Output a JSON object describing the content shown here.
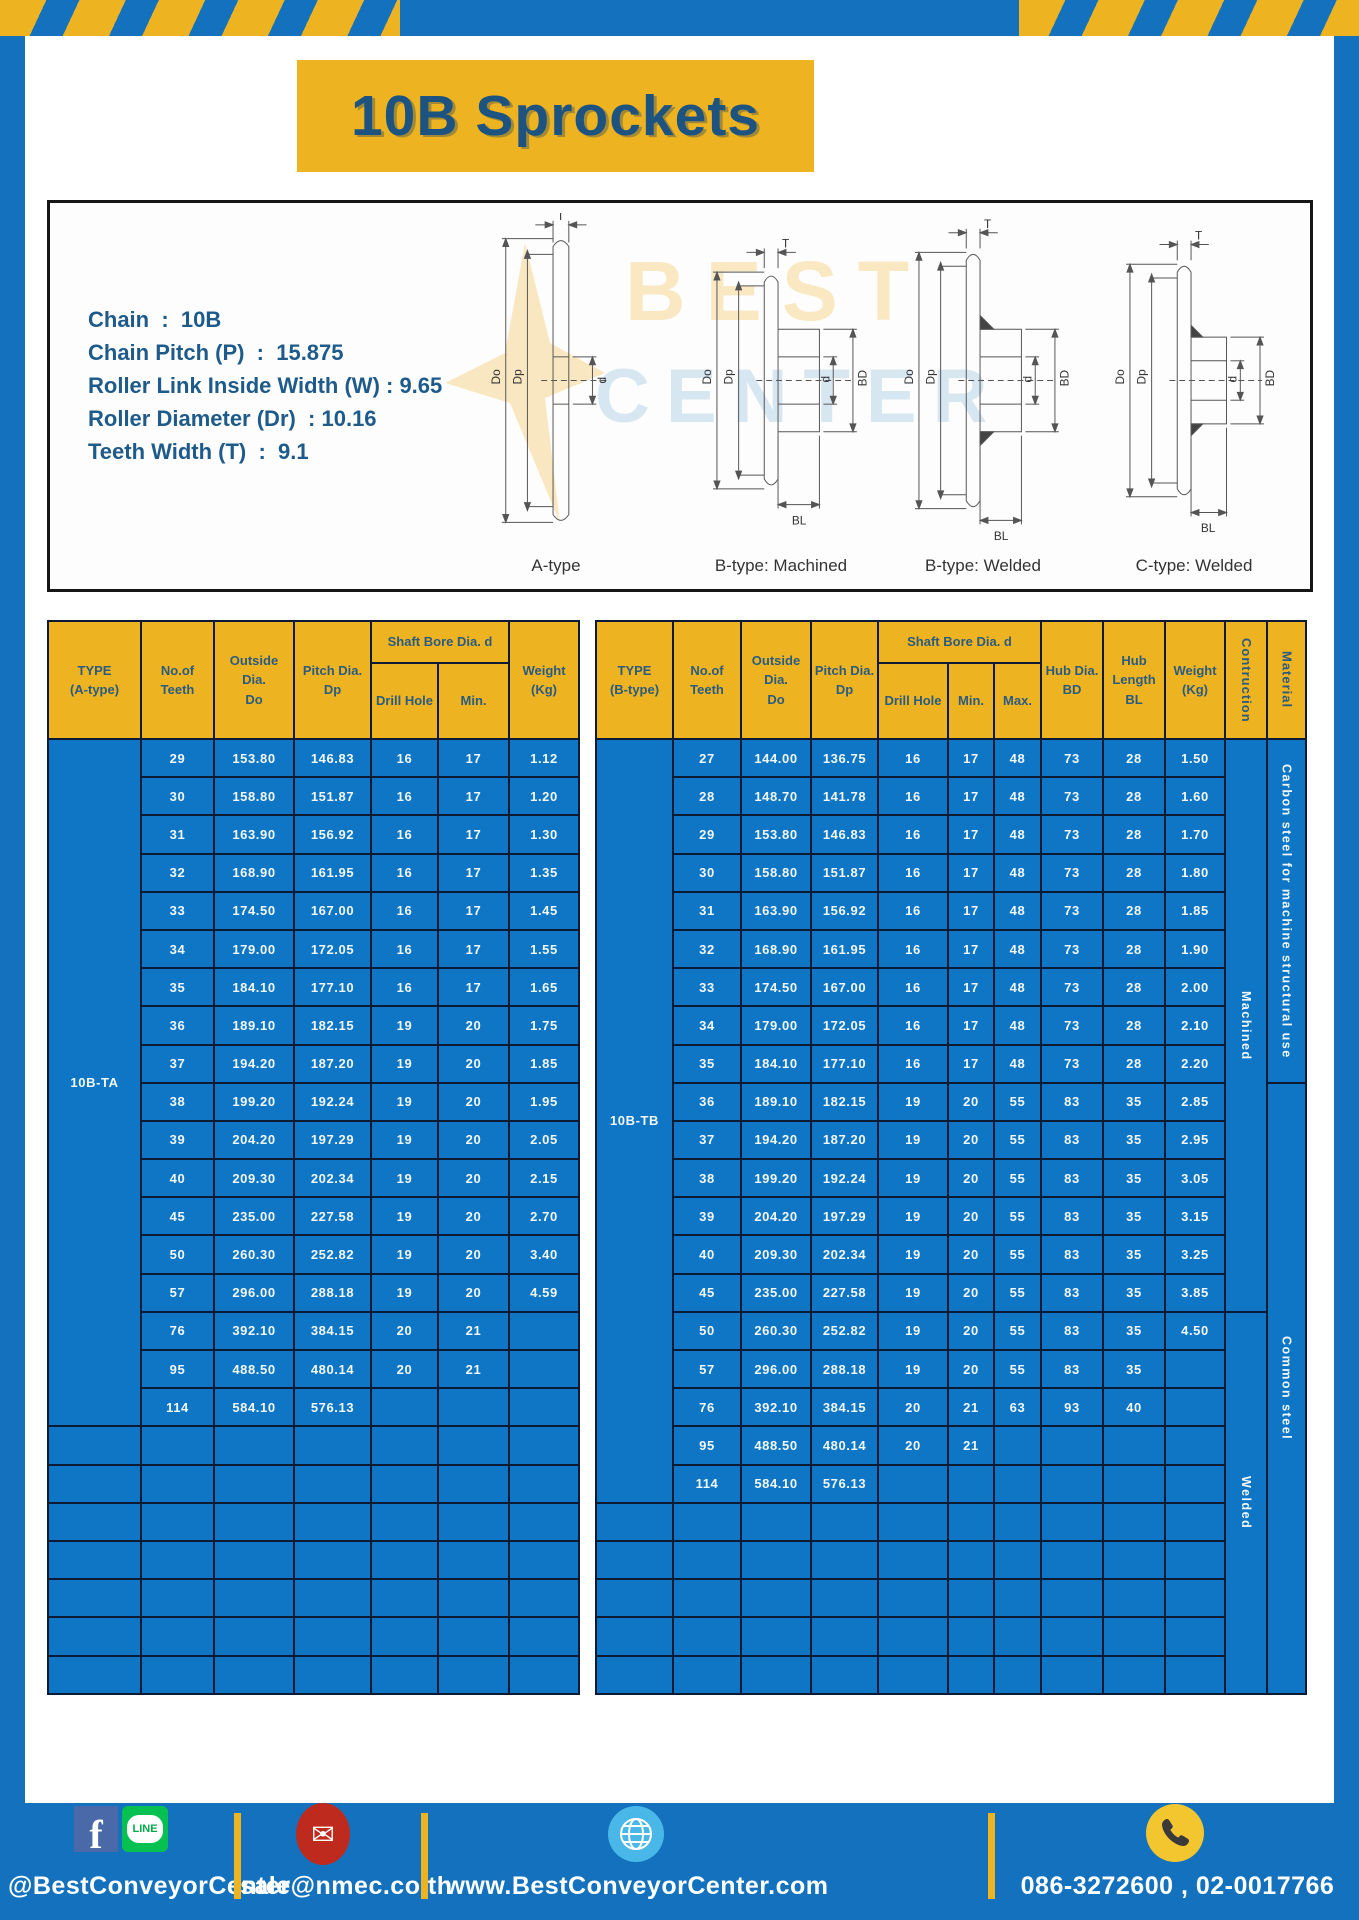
{
  "page": {
    "title": "10B Sprockets"
  },
  "colors": {
    "frame_blue": "#1371BE",
    "cell_blue": "#0E76C4",
    "accent_yellow": "#EEB321",
    "dark_blue_text": "#1C5380",
    "table_border": "#0C1B33",
    "mail_red": "#BF2A1F",
    "line_green": "#06C152",
    "facebook_blue": "#4A69A8",
    "globe_blue": "#49B7E8"
  },
  "specs": {
    "lines": [
      "Chain  :  10B",
      "Chain Pitch (P)  :  15.875",
      "Roller Link Inside Width (W) : 9.65",
      "Roller Diameter (Dr)  : 10.16",
      "Teeth Width (T)  :  9.1"
    ]
  },
  "drawings": {
    "captions": [
      "A-type",
      "B-type: Machined",
      "B-type: Welded",
      "C-type: Welded"
    ],
    "dims": {
      "t": "T",
      "do": "Do",
      "dp": "Dp",
      "d": "d",
      "bd": "BD",
      "bl": "BL"
    }
  },
  "left_table": {
    "type_label": "10B-TA",
    "h": {
      "type": "TYPE\n(A-type)",
      "teeth": "No.of\nTeeth",
      "outside": "Outside\nDia.\nDo",
      "pitch": "Pitch Dia.\nDp",
      "shaft_bore": "Shaft Bore Dia. d",
      "drill": "Drill Hole",
      "min": "Min.",
      "weight": "Weight\n(Kg)"
    },
    "rows": [
      [
        "29",
        "153.80",
        "146.83",
        "16",
        "17",
        "1.12"
      ],
      [
        "30",
        "158.80",
        "151.87",
        "16",
        "17",
        "1.20"
      ],
      [
        "31",
        "163.90",
        "156.92",
        "16",
        "17",
        "1.30"
      ],
      [
        "32",
        "168.90",
        "161.95",
        "16",
        "17",
        "1.35"
      ],
      [
        "33",
        "174.50",
        "167.00",
        "16",
        "17",
        "1.45"
      ],
      [
        "34",
        "179.00",
        "172.05",
        "16",
        "17",
        "1.55"
      ],
      [
        "35",
        "184.10",
        "177.10",
        "16",
        "17",
        "1.65"
      ],
      [
        "36",
        "189.10",
        "182.15",
        "19",
        "20",
        "1.75"
      ],
      [
        "37",
        "194.20",
        "187.20",
        "19",
        "20",
        "1.85"
      ],
      [
        "38",
        "199.20",
        "192.24",
        "19",
        "20",
        "1.95"
      ],
      [
        "39",
        "204.20",
        "197.29",
        "19",
        "20",
        "2.05"
      ],
      [
        "40",
        "209.30",
        "202.34",
        "19",
        "20",
        "2.15"
      ],
      [
        "45",
        "235.00",
        "227.58",
        "19",
        "20",
        "2.70"
      ],
      [
        "50",
        "260.30",
        "252.82",
        "19",
        "20",
        "3.40"
      ],
      [
        "57",
        "296.00",
        "288.18",
        "19",
        "20",
        "4.59"
      ],
      [
        "76",
        "392.10",
        "384.15",
        "20",
        "21",
        ""
      ],
      [
        "95",
        "488.50",
        "480.14",
        "20",
        "21",
        ""
      ],
      [
        "114",
        "584.10",
        "576.13",
        "",
        "",
        ""
      ]
    ],
    "merged_cells": [],
    "empty_rows": 7,
    "empty_row_cols": 7
  },
  "right_table": {
    "type_label": "10B-TB",
    "h": {
      "type": "TYPE\n(B-type)",
      "teeth": "No.of\nTeeth",
      "outside": "Outside\nDia.\nDo",
      "pitch": "Pitch Dia.\nDp",
      "shaft_bore": "Shaft Bore Dia. d",
      "drill": "Drill Hole",
      "min": "Min.",
      "max": "Max.",
      "hub_dia": "Hub Dia.\nBD",
      "hub_len": "Hub\nLength\nBL",
      "weight": "Weight\n(Kg)",
      "construction": "Contruction",
      "material": "Material"
    },
    "rows": [
      [
        "27",
        "144.00",
        "136.75",
        "16",
        "17",
        "48",
        "73",
        "28",
        "1.50"
      ],
      [
        "28",
        "148.70",
        "141.78",
        "16",
        "17",
        "48",
        "73",
        "28",
        "1.60"
      ],
      [
        "29",
        "153.80",
        "146.83",
        "16",
        "17",
        "48",
        "73",
        "28",
        "1.70"
      ],
      [
        "30",
        "158.80",
        "151.87",
        "16",
        "17",
        "48",
        "73",
        "28",
        "1.80"
      ],
      [
        "31",
        "163.90",
        "156.92",
        "16",
        "17",
        "48",
        "73",
        "28",
        "1.85"
      ],
      [
        "32",
        "168.90",
        "161.95",
        "16",
        "17",
        "48",
        "73",
        "28",
        "1.90"
      ],
      [
        "33",
        "174.50",
        "167.00",
        "16",
        "17",
        "48",
        "73",
        "28",
        "2.00"
      ],
      [
        "34",
        "179.00",
        "172.05",
        "16",
        "17",
        "48",
        "73",
        "28",
        "2.10"
      ],
      [
        "35",
        "184.10",
        "177.10",
        "16",
        "17",
        "48",
        "73",
        "28",
        "2.20"
      ],
      [
        "36",
        "189.10",
        "182.15",
        "19",
        "20",
        "55",
        "83",
        "35",
        "2.85"
      ],
      [
        "37",
        "194.20",
        "187.20",
        "19",
        "20",
        "55",
        "83",
        "35",
        "2.95"
      ],
      [
        "38",
        "199.20",
        "192.24",
        "19",
        "20",
        "55",
        "83",
        "35",
        "3.05"
      ],
      [
        "39",
        "204.20",
        "197.29",
        "19",
        "20",
        "55",
        "83",
        "35",
        "3.15"
      ],
      [
        "40",
        "209.30",
        "202.34",
        "19",
        "20",
        "55",
        "83",
        "35",
        "3.25"
      ],
      [
        "45",
        "235.00",
        "227.58",
        "19",
        "20",
        "55",
        "83",
        "35",
        "3.85"
      ],
      [
        "50",
        "260.30",
        "252.82",
        "19",
        "20",
        "55",
        "83",
        "35",
        "4.50"
      ],
      [
        "57",
        "296.00",
        "288.18",
        "19",
        "20",
        "55",
        "83",
        "35",
        ""
      ],
      [
        "76",
        "392.10",
        "384.15",
        "20",
        "21",
        "63",
        "93",
        "40",
        ""
      ],
      [
        "95",
        "488.50",
        "480.14",
        "20",
        "21",
        "",
        "",
        "",
        ""
      ],
      [
        "114",
        "584.10",
        "576.13",
        "",
        "",
        "",
        "",
        "",
        ""
      ]
    ],
    "merged_cells": [
      {
        "row": 0,
        "rowspan": 15,
        "label": "Machined"
      },
      {
        "row": 0,
        "rowspan": 9,
        "label": "Carbon steel for  machine structural use"
      },
      {
        "row": 9,
        "rowspan": 16,
        "label": "Common steel"
      },
      {
        "row": 15,
        "rowspan": 10,
        "label": "Welded"
      }
    ],
    "empty_rows": 5,
    "empty_row_cols": 10
  },
  "footer": {
    "social_handle": "@BestConveyorCenter",
    "line_label": "LINE",
    "email": "sale@nmec.co.th",
    "website": "www.BestConveyorCenter.com",
    "phones": "086-3272600 , 02-0017766"
  }
}
